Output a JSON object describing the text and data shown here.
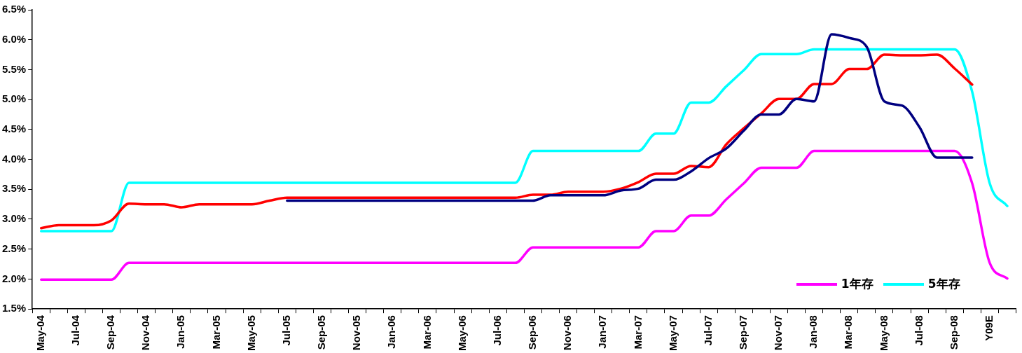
{
  "chart_data": {
    "type": "line",
    "categories": [
      "May-04",
      null,
      "Jul-04",
      null,
      "Sep-04",
      null,
      "Nov-04",
      null,
      "Jan-05",
      null,
      "Mar-05",
      null,
      "May-05",
      null,
      "Jul-05",
      null,
      "Sep-05",
      null,
      "Nov-05",
      null,
      "Jan-06",
      null,
      "Mar-06",
      null,
      "May-06",
      null,
      "Jul-06",
      null,
      "Sep-06",
      null,
      "Nov-06",
      null,
      "Jan-07",
      null,
      "Mar-07",
      null,
      "May-07",
      null,
      "Jul-07",
      null,
      "Sep-07",
      null,
      "Nov-07",
      null,
      "Jan-08",
      null,
      "Mar-08",
      null,
      "May-08",
      null,
      "Jul-08",
      null,
      "Sep-08",
      null,
      "Y09E",
      null
    ],
    "series": [
      {
        "color": "#000080",
        "values": [
          null,
          null,
          null,
          null,
          null,
          null,
          null,
          null,
          null,
          null,
          null,
          null,
          null,
          null,
          3.31,
          3.31,
          3.31,
          3.31,
          3.31,
          3.31,
          3.31,
          3.31,
          3.31,
          3.31,
          3.31,
          3.31,
          3.31,
          3.31,
          3.31,
          3.4,
          3.4,
          3.4,
          3.4,
          3.48,
          3.51,
          3.66,
          3.66,
          3.8,
          4.02,
          4.18,
          4.48,
          4.75,
          4.75,
          5.01,
          4.97,
          6.09,
          6.03,
          5.88,
          4.97,
          4.9,
          4.54,
          4.03,
          4.03,
          4.03,
          null,
          null
        ]
      },
      {
        "color": "#ff0000",
        "values": [
          2.85,
          2.9,
          2.9,
          2.9,
          2.98,
          3.26,
          3.25,
          3.25,
          3.2,
          3.25,
          3.25,
          3.25,
          3.25,
          3.31,
          3.36,
          3.36,
          3.36,
          3.36,
          3.36,
          3.36,
          3.36,
          3.36,
          3.36,
          3.36,
          3.36,
          3.36,
          3.36,
          3.36,
          3.41,
          3.41,
          3.46,
          3.46,
          3.46,
          3.51,
          3.62,
          3.76,
          3.76,
          3.89,
          3.87,
          4.25,
          4.52,
          4.77,
          5.01,
          5.01,
          5.26,
          5.26,
          5.51,
          5.51,
          5.75,
          5.74,
          5.74,
          5.75,
          5.52,
          5.25,
          null,
          null
        ]
      },
      {
        "name": "1年存",
        "color": "#ff00ff",
        "values": [
          1.99,
          1.99,
          1.99,
          1.99,
          1.99,
          2.27,
          2.27,
          2.27,
          2.27,
          2.27,
          2.27,
          2.27,
          2.27,
          2.27,
          2.27,
          2.27,
          2.27,
          2.27,
          2.27,
          2.27,
          2.27,
          2.27,
          2.27,
          2.27,
          2.27,
          2.27,
          2.27,
          2.27,
          2.53,
          2.53,
          2.53,
          2.53,
          2.53,
          2.53,
          2.53,
          2.8,
          2.8,
          3.06,
          3.06,
          3.33,
          3.6,
          3.86,
          3.86,
          3.86,
          4.14,
          4.14,
          4.14,
          4.14,
          4.14,
          4.14,
          4.14,
          4.14,
          4.14,
          3.6,
          2.27,
          2.01
        ]
      },
      {
        "name": "5年存",
        "color": "#00ffff",
        "values": [
          2.8,
          2.8,
          2.8,
          2.8,
          2.8,
          3.61,
          3.61,
          3.61,
          3.61,
          3.61,
          3.61,
          3.61,
          3.61,
          3.61,
          3.61,
          3.61,
          3.61,
          3.61,
          3.61,
          3.61,
          3.61,
          3.61,
          3.61,
          3.61,
          3.61,
          3.61,
          3.61,
          3.61,
          4.14,
          4.14,
          4.14,
          4.14,
          4.14,
          4.14,
          4.14,
          4.43,
          4.43,
          4.95,
          4.95,
          5.22,
          5.49,
          5.76,
          5.76,
          5.76,
          5.84,
          5.84,
          5.84,
          5.84,
          5.84,
          5.84,
          5.84,
          5.84,
          5.84,
          5.13,
          3.6,
          3.22
        ]
      }
    ],
    "ylim": [
      1.5,
      6.5
    ],
    "yticks": [
      {
        "value": 1.5,
        "label": "1.5%"
      },
      {
        "value": 2,
        "label": "2.0%"
      },
      {
        "value": 2.5,
        "label": "2.5%"
      },
      {
        "value": 3,
        "label": "3.0%"
      },
      {
        "value": 3.5,
        "label": "3.5%"
      },
      {
        "value": 4,
        "label": "4.0%"
      },
      {
        "value": 4.5,
        "label": "4.5%"
      },
      {
        "value": 5,
        "label": "5.0%"
      },
      {
        "value": 5.5,
        "label": "5.5%"
      },
      {
        "value": 6,
        "label": "6.0%"
      },
      {
        "value": 6.5,
        "label": "6.5%"
      }
    ],
    "grid": false,
    "legend": "bottom right",
    "marker": "none",
    "line_style": "solid"
  }
}
